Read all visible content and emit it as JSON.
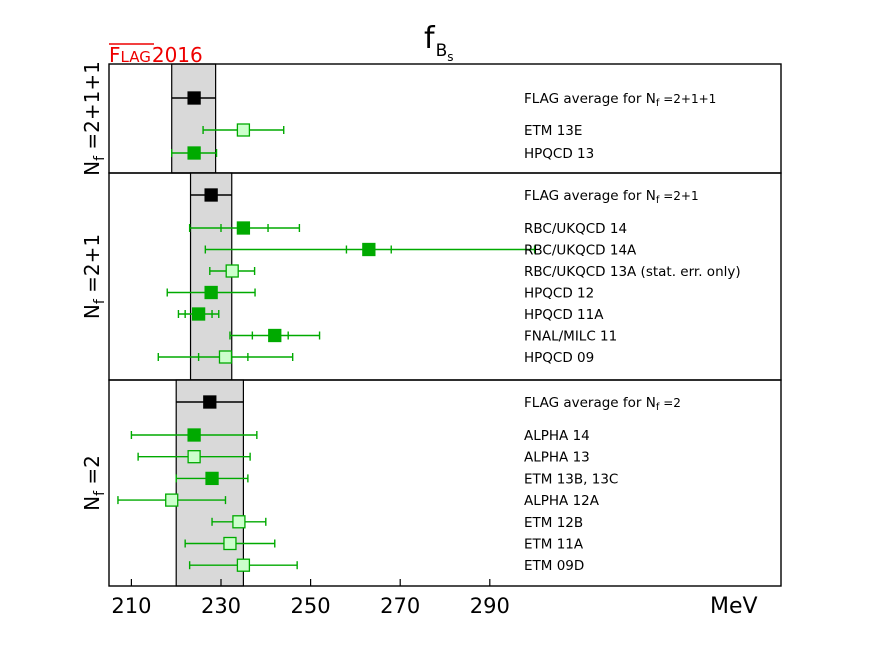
{
  "chart_data": {
    "type": "scatter",
    "title": "f",
    "title_subscript": "B",
    "title_subsubscript": "s",
    "badge": {
      "prefix": "F",
      "rest": "LAG",
      "year": "2016"
    },
    "xlabel": "MeV",
    "xlim": [
      205,
      355
    ],
    "xticks": [
      210,
      230,
      250,
      270,
      290
    ],
    "colors": {
      "average": "#000000",
      "filled": "#00aa00",
      "open_fill": "#ccffcc",
      "open_edge": "#00aa00",
      "band": "#d9d9d9",
      "badge": "#ee0000"
    },
    "panels": [
      {
        "name": "nf-2+1+1",
        "ylabel_main": "N",
        "ylabel_sub": "f",
        "ylabel_rest": " =2+1+1",
        "band": [
          219.0,
          228.8
        ],
        "points": [
          {
            "label": "FLAG average for N",
            "label_sub": "f",
            "label_rest": " =2+1+1",
            "kind": "average",
            "value": 224.0,
            "stat": null,
            "total": [
              219.0,
              228.8
            ]
          },
          {
            "label": "ETM 13E",
            "kind": "open",
            "value": 235.0,
            "stat": null,
            "total": [
              226.0,
              244.0
            ]
          },
          {
            "label": "HPQCD 13",
            "kind": "filled",
            "value": 224.0,
            "stat": null,
            "total": [
              219.0,
              229.0
            ]
          }
        ]
      },
      {
        "name": "nf-2+1",
        "ylabel_main": "N",
        "ylabel_sub": "f",
        "ylabel_rest": " =2+1",
        "band": [
          223.2,
          232.4
        ],
        "points": [
          {
            "label": "FLAG average for N",
            "label_sub": "f",
            "label_rest": " =2+1",
            "kind": "average",
            "value": 227.8,
            "stat": null,
            "total": [
              223.2,
              232.4
            ]
          },
          {
            "label": "RBC/UKQCD 14",
            "kind": "filled",
            "value": 235.0,
            "stat": [
              230.0,
              240.5
            ],
            "total": [
              223.0,
              247.5
            ]
          },
          {
            "label": "RBC/UKQCD 14A",
            "kind": "filled",
            "value": 263.0,
            "stat": [
              258.0,
              268.0
            ],
            "total": [
              226.5,
              300.0
            ]
          },
          {
            "label": "RBC/UKQCD 13A (stat. err. only)",
            "kind": "open",
            "value": 232.5,
            "stat": null,
            "total": [
              227.5,
              237.5
            ]
          },
          {
            "label": "HPQCD 12",
            "kind": "filled",
            "value": 227.8,
            "stat": null,
            "total": [
              218.0,
              237.6
            ]
          },
          {
            "label": "HPQCD 11A",
            "kind": "filled",
            "value": 225.0,
            "stat": [
              222.0,
              228.0
            ],
            "total": [
              220.5,
              229.5
            ]
          },
          {
            "label": "FNAL/MILC 11",
            "kind": "filled",
            "value": 242.0,
            "stat": [
              237.0,
              245.0
            ],
            "total": [
              232.0,
              252.0
            ]
          },
          {
            "label": "HPQCD 09",
            "kind": "open",
            "value": 231.0,
            "stat": [
              225.0,
              236.0
            ],
            "total": [
              216.0,
              246.0
            ]
          }
        ]
      },
      {
        "name": "nf-2",
        "ylabel_main": "N",
        "ylabel_sub": "f",
        "ylabel_rest": " =2",
        "band": [
          220.0,
          235.0
        ],
        "points": [
          {
            "label": "FLAG average for N",
            "label_sub": "f",
            "label_rest": " =2",
            "kind": "average",
            "value": 227.5,
            "stat": null,
            "total": [
              220.0,
              235.0
            ]
          },
          {
            "label": "ALPHA 14",
            "kind": "filled",
            "value": 224.0,
            "stat": null,
            "total": [
              210.0,
              238.0
            ]
          },
          {
            "label": "ALPHA 13",
            "kind": "open",
            "value": 224.0,
            "stat": null,
            "total": [
              211.5,
              236.5
            ]
          },
          {
            "label": "ETM 13B, 13C",
            "kind": "filled",
            "value": 228.0,
            "stat": null,
            "total": [
              220.0,
              236.0
            ]
          },
          {
            "label": "ALPHA 12A",
            "kind": "open",
            "value": 219.0,
            "stat": null,
            "total": [
              207.0,
              231.0
            ]
          },
          {
            "label": "ETM 12B",
            "kind": "open",
            "value": 234.0,
            "stat": null,
            "total": [
              228.0,
              240.0
            ]
          },
          {
            "label": "ETM 11A",
            "kind": "open",
            "value": 232.0,
            "stat": null,
            "total": [
              222.0,
              242.0
            ]
          },
          {
            "label": "ETM 09D",
            "kind": "open",
            "value": 235.0,
            "stat": null,
            "total": [
              223.0,
              247.0
            ]
          }
        ]
      }
    ]
  }
}
